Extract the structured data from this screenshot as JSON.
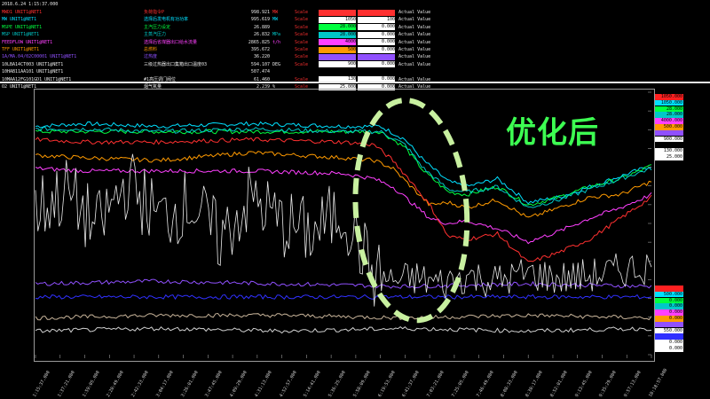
{
  "timestamp": "2018.6.24 1:15:37.000",
  "legend": [
    {
      "tag": "MWD1 UNIT1@NET1",
      "desc": "负荷指令P",
      "value": "998.921",
      "unit": "MW",
      "scale": "Scale",
      "lo": "",
      "hi": "",
      "actual": "Actual Value",
      "color": "#ff3030",
      "lo_bg": "#ff3030",
      "hi_bg": "#ff3030"
    },
    {
      "tag": "MW UNIT1@NET1",
      "desc": "选择后发电机有功功率",
      "value": "995.619",
      "unit": "MW",
      "scale": "Scale",
      "lo": "1050",
      "hi": "100",
      "actual": "Actual Value",
      "color": "#00e0ff",
      "lo_bg": "#ffffff",
      "hi_bg": "#ffffff"
    },
    {
      "tag": "MSPE UNIT1@NET1",
      "desc": "主汽压力设定",
      "value": "26.889",
      "unit": "",
      "scale": "Scale",
      "lo": "28.000",
      "hi": "0.000",
      "actual": "Actual Value",
      "color": "#00ff40",
      "lo_bg": "#00ff40",
      "hi_bg": "#ffffff"
    },
    {
      "tag": "MSP UNIT1@NET1",
      "desc": "主蒸汽压力",
      "value": "26.832",
      "unit": "MPa",
      "scale": "Scale",
      "lo": "28.000",
      "hi": "0.000",
      "actual": "Actual Value",
      "color": "#00c8c8",
      "lo_bg": "#00c8c8",
      "hi_bg": "#ffffff"
    },
    {
      "tag": "FEEDFLOW UNIT1@NET1",
      "desc": "选择后省煤器出口给水流量",
      "value": "2865.825",
      "unit": "t/h",
      "scale": "Scale",
      "lo": "4000",
      "hi": "0.000",
      "actual": "Actual Value",
      "color": "#ff40ff",
      "lo_bg": "#ff40ff",
      "hi_bg": "#ffffff"
    },
    {
      "tag": "TFF UNIT1@NET1",
      "desc": "总燃料",
      "value": "395.672",
      "unit": "",
      "scale": "Scale",
      "lo": "500",
      "hi": "0.000",
      "actual": "Actual Value",
      "color": "#ff9a00",
      "lo_bg": "#ff9a00",
      "hi_bg": "#ffffff"
    },
    {
      "tag": "1A/MA.04/02C00001 UNIT1@NET1",
      "desc": "过热度",
      "value": "36.220",
      "unit": "",
      "scale": "Scale",
      "lo": "",
      "hi": "",
      "actual": "Actual Value",
      "color": "#9050ff",
      "lo_bg": "#9050ff",
      "hi_bg": "#9050ff"
    },
    {
      "tag": "10LBA14CT003 UNIT1@NET1",
      "desc": "三级过热器出口集箱出口温度03",
      "value": "594.107",
      "unit": "DEG",
      "scale": "Scale",
      "lo": "900",
      "hi": "0.000",
      "actual": "Actual Value",
      "color": "#e8e8e8",
      "lo_bg": "#ffffff",
      "hi_bg": "#ffffff"
    },
    {
      "tag": "10HAB11AA101 UNIT1@NET1",
      "desc": "",
      "value": "507.474",
      "unit": "",
      "scale": "",
      "lo": "",
      "hi": "",
      "actual": "",
      "color": "#e8e8e8",
      "lo_bg": "",
      "hi_bg": ""
    },
    {
      "tag": "10MAA12FG101GD1 UNIT1@NET1",
      "desc": "#1高压调门阀位",
      "value": "61.460",
      "unit": "",
      "scale": "Scale",
      "lo": "130",
      "hi": "0.000",
      "actual": "Actual Value",
      "color": "#e8e8e8",
      "lo_bg": "#ffffff",
      "hi_bg": "#ffffff"
    },
    {
      "tag": "O2 UNIT1@NET1",
      "desc": "烟气氧量",
      "value": "2.239",
      "unit": "%",
      "scale": "Scale",
      "lo": "25.000",
      "hi": "0.000",
      "actual": "Actual Value",
      "color": "#e8e8e8",
      "lo_bg": "#ffffff",
      "hi_bg": "#ffffff"
    }
  ],
  "annotation": "优化后",
  "scale_boxes_right_top": [
    {
      "text": "1050.000",
      "bg": "#ff2020",
      "fg": "#000"
    },
    {
      "text": "1050.000",
      "bg": "#00e0ff",
      "fg": "#000"
    },
    {
      "text": "28.000",
      "bg": "#00ff40",
      "fg": "#000"
    },
    {
      "text": "28.000",
      "bg": "#00c8c8",
      "fg": "#000"
    },
    {
      "text": "4000.000",
      "bg": "#ff40ff",
      "fg": "#000"
    },
    {
      "text": "500.000",
      "bg": "#ff9a00",
      "fg": "#000"
    },
    {
      "text": "",
      "bg": "#9050ff",
      "fg": "#000"
    },
    {
      "text": "900.000",
      "bg": "#ffffff",
      "fg": "#000"
    },
    {
      "text": "",
      "bg": "#000000",
      "fg": "#fff"
    },
    {
      "text": "130.000",
      "bg": "#ffffff",
      "fg": "#000"
    },
    {
      "text": "25.000",
      "bg": "#ffffff",
      "fg": "#000"
    }
  ],
  "scale_boxes_right_bottom": [
    {
      "text": "",
      "bg": "#ff2020",
      "fg": "#000"
    },
    {
      "text": "500.000",
      "bg": "#00e0ff",
      "fg": "#000"
    },
    {
      "text": "0.000",
      "bg": "#00ff40",
      "fg": "#000"
    },
    {
      "text": "0.000",
      "bg": "#00c8c8",
      "fg": "#000"
    },
    {
      "text": "0.000",
      "bg": "#ff40ff",
      "fg": "#000"
    },
    {
      "text": "0.000",
      "bg": "#ff9a00",
      "fg": "#000"
    },
    {
      "text": "",
      "bg": "#9050ff",
      "fg": "#000"
    },
    {
      "text": "550.000",
      "bg": "#ffffff",
      "fg": "#000"
    },
    {
      "text": "",
      "bg": "#3030ff",
      "fg": "#000"
    },
    {
      "text": "0.000",
      "bg": "#ffffff",
      "fg": "#000"
    },
    {
      "text": "0.000",
      "bg": "#ffffff",
      "fg": "#000"
    }
  ],
  "chart_data": {
    "type": "line",
    "title": "",
    "xlabel": "",
    "ylabel": "",
    "grid": false,
    "x_tick_labels": [
      "1:15:37.000",
      "1:37:21.000",
      "1:59:05.000",
      "2:20:49.000",
      "2:42:33.000",
      "3:04:17.000",
      "3:26:01.000",
      "3:47:45.000",
      "4:09:29.000",
      "4:31:13.000",
      "4:52:57.000",
      "5:14:41.000",
      "5:36:25.000",
      "5:58:09.000",
      "6:19:53.000",
      "6:41:37.000",
      "7:03:21.000",
      "7:25:05.000",
      "7:46:49.000",
      "8:08:33.000",
      "8:30:17.000",
      "8:52:01.000",
      "9:13:45.000",
      "9:35:29.000",
      "9:57:13.000",
      "10:18:57.000"
    ],
    "x_range": [
      0,
      1
    ],
    "y_range": [
      0,
      1
    ],
    "highlight_ellipse": {
      "color": "#c8f0a0",
      "center_x_frac": 0.61,
      "center_y_frac": 0.55,
      "rx_frac": 0.09,
      "ry_frac": 0.42
    },
    "series": [
      {
        "name": "MW UNIT1@NET1",
        "color": "#00e0ff",
        "x": [
          0,
          0.08,
          0.2,
          0.35,
          0.5,
          0.56,
          0.6,
          0.63,
          0.67,
          0.7,
          0.75,
          0.8,
          0.85,
          0.9,
          0.95,
          1
        ],
        "y": [
          0.87,
          0.88,
          0.87,
          0.88,
          0.87,
          0.87,
          0.82,
          0.74,
          0.66,
          0.64,
          0.67,
          0.58,
          0.6,
          0.64,
          0.68,
          0.72
        ]
      },
      {
        "name": "MSPE UNIT1@NET1",
        "color": "#00ff40",
        "x": [
          0,
          0.08,
          0.2,
          0.35,
          0.5,
          0.56,
          0.6,
          0.63,
          0.67,
          0.7,
          0.75,
          0.8,
          0.85,
          0.9,
          0.95,
          1
        ],
        "y": [
          0.85,
          0.85,
          0.85,
          0.85,
          0.85,
          0.85,
          0.79,
          0.7,
          0.62,
          0.61,
          0.64,
          0.57,
          0.6,
          0.64,
          0.67,
          0.72
        ]
      },
      {
        "name": "MSP UNIT1@NET1",
        "color": "#00c8c8",
        "x": [
          0,
          0.08,
          0.2,
          0.35,
          0.5,
          0.56,
          0.6,
          0.63,
          0.67,
          0.7,
          0.75,
          0.8,
          0.85,
          0.9,
          0.95,
          1
        ],
        "y": [
          0.86,
          0.86,
          0.85,
          0.86,
          0.85,
          0.85,
          0.8,
          0.71,
          0.63,
          0.62,
          0.64,
          0.56,
          0.59,
          0.63,
          0.67,
          0.71
        ]
      },
      {
        "name": "TFF UNIT1@NET1",
        "color": "#ff9a00",
        "x": [
          0,
          0.08,
          0.2,
          0.35,
          0.5,
          0.55,
          0.58,
          0.61,
          0.64,
          0.67,
          0.7,
          0.75,
          0.8,
          0.85,
          0.9,
          0.95,
          1
        ],
        "y": [
          0.76,
          0.75,
          0.74,
          0.77,
          0.75,
          0.74,
          0.71,
          0.64,
          0.57,
          0.58,
          0.56,
          0.59,
          0.52,
          0.56,
          0.6,
          0.61,
          0.66
        ]
      },
      {
        "name": "FEEDFLOW UNIT1@NET1",
        "color": "#ff40ff",
        "x": [
          0,
          0.08,
          0.2,
          0.35,
          0.5,
          0.55,
          0.58,
          0.61,
          0.64,
          0.67,
          0.7,
          0.75,
          0.8,
          0.85,
          0.9,
          0.95,
          1
        ],
        "y": [
          0.71,
          0.7,
          0.7,
          0.7,
          0.69,
          0.67,
          0.64,
          0.58,
          0.52,
          0.5,
          0.51,
          0.48,
          0.43,
          0.47,
          0.52,
          0.56,
          0.61
        ]
      },
      {
        "name": "10LBA14CT003 UNIT1@NET1",
        "color": "#ff3030",
        "x": [
          0,
          0.08,
          0.2,
          0.35,
          0.5,
          0.55,
          0.58,
          0.61,
          0.64,
          0.67,
          0.7,
          0.75,
          0.8,
          0.85,
          0.9,
          0.95,
          1
        ],
        "y": [
          0.82,
          0.81,
          0.81,
          0.82,
          0.81,
          0.8,
          0.74,
          0.66,
          0.57,
          0.45,
          0.44,
          0.46,
          0.35,
          0.39,
          0.44,
          0.52,
          0.6
        ]
      },
      {
        "name": "1A/MA.04/02C00001 UNIT1@NET1",
        "color": "#9050ff",
        "x": [
          0,
          0.2,
          0.4,
          0.6,
          0.8,
          1
        ],
        "y": [
          0.27,
          0.28,
          0.27,
          0.26,
          0.27,
          0.26
        ]
      },
      {
        "name": "10HAB11AA101 UNIT1@NET1",
        "color": "#3030ff",
        "x": [
          0,
          0.2,
          0.4,
          0.6,
          0.8,
          1
        ],
        "y": [
          0.22,
          0.22,
          0.22,
          0.22,
          0.22,
          0.22
        ]
      },
      {
        "name": "10MAA12FG101GD1 UNIT1@NET1",
        "color": "#e8e8e8",
        "x": [
          0,
          0.05,
          0.1,
          0.15,
          0.2,
          0.25,
          0.3,
          0.35,
          0.4,
          0.45,
          0.5,
          0.55,
          0.58,
          0.62,
          0.66,
          0.7,
          0.75,
          0.8,
          0.85,
          0.9,
          0.95,
          1
        ],
        "y": [
          0.55,
          0.62,
          0.48,
          0.66,
          0.52,
          0.58,
          0.44,
          0.6,
          0.5,
          0.46,
          0.55,
          0.3,
          0.28,
          0.29,
          0.27,
          0.3,
          0.28,
          0.31,
          0.29,
          0.3,
          0.32,
          0.34
        ]
      },
      {
        "name": "O2 UNIT1@NET1",
        "color": "#c8b49a",
        "x": [
          0,
          0.2,
          0.4,
          0.6,
          0.8,
          1
        ],
        "y": [
          0.14,
          0.15,
          0.15,
          0.14,
          0.15,
          0.14
        ]
      },
      {
        "name": "O2 UNIT1@NET1",
        "color": "#d0d0d0",
        "x": [
          0,
          0.2,
          0.4,
          0.6,
          0.8,
          1
        ],
        "y": [
          0.09,
          0.1,
          0.09,
          0.1,
          0.09,
          0.1
        ]
      }
    ]
  }
}
